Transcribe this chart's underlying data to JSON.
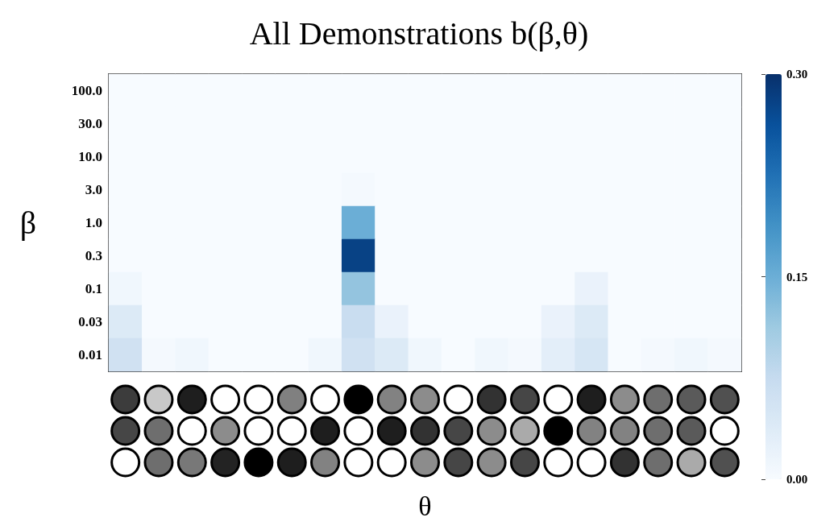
{
  "chart_data": {
    "type": "heatmap",
    "title": "All Demonstrations b(β,θ)",
    "xlabel": "θ",
    "ylabel": "β",
    "categories": [
      null,
      null,
      null,
      null,
      null,
      null,
      null,
      null,
      null,
      null,
      null,
      null,
      null,
      null,
      null,
      null,
      null,
      null,
      null
    ],
    "y_categories": [
      "100.0",
      "30.0",
      "10.0",
      "3.0",
      "1.0",
      "0.3",
      "0.1",
      "0.03",
      "0.01"
    ],
    "cells": [
      [
        0,
        0,
        0,
        0,
        0,
        0,
        0,
        0,
        0,
        0,
        0,
        0,
        0,
        0,
        0,
        0,
        0,
        0,
        0
      ],
      [
        0,
        0,
        0,
        0,
        0,
        0,
        0,
        0,
        0,
        0,
        0,
        0,
        0,
        0,
        0,
        0,
        0,
        0,
        0
      ],
      [
        0,
        0,
        0,
        0,
        0,
        0,
        0,
        0,
        0,
        0,
        0,
        0,
        0,
        0,
        0,
        0,
        0,
        0,
        0
      ],
      [
        0,
        0,
        0,
        0,
        0,
        0,
        0,
        0.005,
        0,
        0,
        0,
        0,
        0,
        0,
        0,
        0,
        0,
        0,
        0
      ],
      [
        0,
        0,
        0,
        0,
        0,
        0,
        0,
        0.15,
        0,
        0,
        0,
        0,
        0,
        0,
        0,
        0,
        0,
        0,
        0
      ],
      [
        0,
        0,
        0,
        0,
        0,
        0,
        0,
        0.28,
        0,
        0,
        0,
        0,
        0,
        0,
        0,
        0,
        0,
        0,
        0
      ],
      [
        0.01,
        0,
        0,
        0,
        0,
        0,
        0,
        0.12,
        0,
        0,
        0,
        0,
        0,
        0,
        0.02,
        0,
        0,
        0,
        0
      ],
      [
        0.04,
        0,
        0,
        0,
        0,
        0,
        0,
        0.07,
        0.02,
        0,
        0,
        0,
        0,
        0.02,
        0.04,
        0,
        0,
        0,
        0
      ],
      [
        0.06,
        0.005,
        0.01,
        0,
        0,
        0,
        0.01,
        0.06,
        0.04,
        0.01,
        0,
        0.01,
        0.005,
        0.03,
        0.05,
        0,
        0.005,
        0.01,
        0.005
      ]
    ],
    "clim": [
      0,
      0.3
    ],
    "cticks": [
      {
        "value": 0,
        "label": "0.00"
      },
      {
        "value": 0.15,
        "label": "0.15"
      },
      {
        "value": 0.3,
        "label": "0.30"
      }
    ]
  }
}
